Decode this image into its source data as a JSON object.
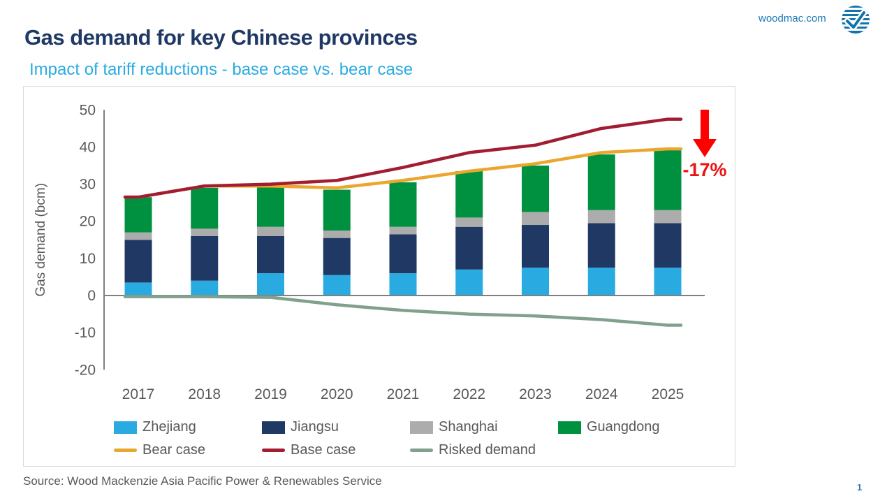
{
  "header": {
    "title": "Gas demand for key Chinese provinces",
    "subtitle": "Impact of tariff reductions - base case vs. bear case",
    "website": "woodmac.com",
    "title_color": "#1F3864",
    "subtitle_color": "#29ABE2",
    "brand_blue": "#1374AD"
  },
  "chart_data": {
    "type": "bar",
    "subtype": "stacked-bar-with-lines",
    "title": "",
    "xlabel": "",
    "ylabel": "Gas demand (bcm)",
    "categories": [
      "2017",
      "2018",
      "2019",
      "2020",
      "2021",
      "2022",
      "2023",
      "2024",
      "2025"
    ],
    "ylim": [
      -20,
      50
    ],
    "yticks": [
      50,
      40,
      30,
      20,
      10,
      0,
      -10,
      -20
    ],
    "grid": false,
    "legend_position": "bottom",
    "axis_color": "#7F7F7F",
    "tick_color": "#595959",
    "bar_series": [
      {
        "name": "Zhejiang",
        "color": "#29ABE2",
        "values": [
          3.5,
          4,
          6,
          5.5,
          6,
          7,
          7.5,
          7.5,
          7.5
        ]
      },
      {
        "name": "Jiangsu",
        "color": "#1F3864",
        "values": [
          11.5,
          12,
          10,
          10,
          10.5,
          11.5,
          11.5,
          12,
          12
        ]
      },
      {
        "name": "Shanghai",
        "color": "#ACACAC",
        "values": [
          2,
          2,
          2.5,
          2,
          2,
          2.5,
          3.5,
          3.5,
          3.5
        ]
      },
      {
        "name": "Guangdong",
        "color": "#009140",
        "values": [
          9.5,
          11,
          11,
          11,
          12,
          12.5,
          12.5,
          15,
          16.5
        ]
      }
    ],
    "line_series": [
      {
        "name": "Bear case",
        "color": "#EBA72D",
        "values": [
          26.5,
          29.5,
          29.5,
          29,
          31,
          33.5,
          35.5,
          38.5,
          39.5
        ]
      },
      {
        "name": "Base case",
        "color": "#A21D32",
        "values": [
          26.5,
          29.5,
          30,
          31,
          34.5,
          38.5,
          40.5,
          45,
          47.5
        ]
      },
      {
        "name": "Risked demand",
        "color": "#81A08E",
        "values": [
          -0.3,
          -0.3,
          -0.5,
          -2.5,
          -4,
          -5,
          -5.5,
          -6.5,
          -8
        ]
      }
    ],
    "annotation": {
      "text": "-17%",
      "color": "#EE1111",
      "arrow_color": "#FF0000"
    }
  },
  "footer": {
    "source": "Source: Wood Mackenzie Asia Pacific Power & Renewables Service",
    "page": "1"
  }
}
